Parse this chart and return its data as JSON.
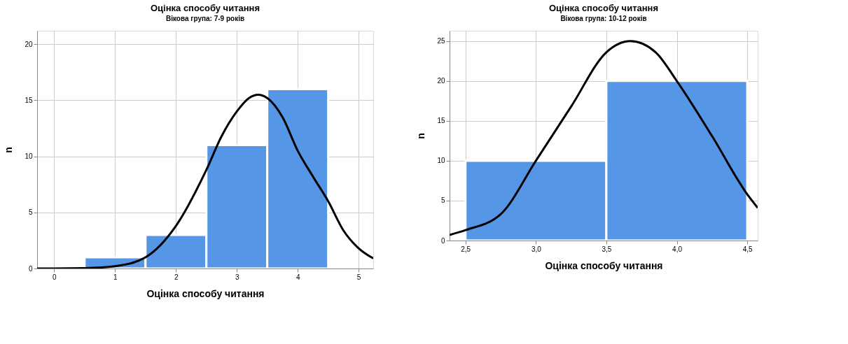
{
  "chart_data": [
    {
      "type": "histogram",
      "title": "Оцінка способу читання",
      "subtitle": "Вікова група: 7-9 років",
      "xlabel": "Оцінка способу читання",
      "ylabel": "n",
      "bins": [
        0.5,
        1.5,
        2.5,
        3.5,
        4.5
      ],
      "values": [
        1,
        3,
        11,
        16
      ],
      "color": "#5596e6",
      "series": [
        {
          "type": "line",
          "color": "#000000",
          "x": [
            -0.28,
            0,
            0.5,
            1,
            1.5,
            2,
            2.5,
            2.75,
            3,
            3.2,
            3.35,
            3.5,
            3.75,
            4,
            4.25,
            4.5,
            4.75,
            5,
            5.24
          ],
          "values": [
            0,
            0,
            0.03,
            0.2,
            1.0,
            3.8,
            8.8,
            11.8,
            14.0,
            15.2,
            15.5,
            15.2,
            13.5,
            10.5,
            8.2,
            6.0,
            3.4,
            1.8,
            0.9
          ]
        }
      ],
      "xlim": [
        -0.28,
        5.24
      ],
      "xticks": [
        0,
        1,
        2,
        3,
        4,
        5
      ],
      "ylim": [
        0,
        21.2
      ],
      "yticks": [
        0,
        5,
        10,
        15,
        20
      ],
      "grid": true
    },
    {
      "type": "histogram",
      "title": "Оцінка способу читання",
      "subtitle": "Вікова група: 10-12 років",
      "xlabel": "Оцінка способу читання",
      "ylabel": "n",
      "bins": [
        2.5,
        3.5,
        4.5
      ],
      "values": [
        10,
        20
      ],
      "color": "#5596e6",
      "series": [
        {
          "type": "line",
          "color": "#000000",
          "x": [
            2.387,
            2.5,
            2.75,
            3.0,
            3.25,
            3.5,
            3.67,
            3.85,
            4.0,
            4.25,
            4.5,
            4.574
          ],
          "values": [
            0.7,
            1.3,
            3.3,
            10.0,
            16.8,
            23.6,
            25.0,
            23.6,
            20.0,
            13.1,
            5.8,
            4.1
          ]
        }
      ],
      "xlim": [
        2.387,
        4.574
      ],
      "xticks": [
        {
          "value": 2.5,
          "label": "2,5"
        },
        {
          "value": 3.0,
          "label": "3,0"
        },
        {
          "value": 3.5,
          "label": "3,5"
        },
        {
          "value": 4.0,
          "label": "4,0"
        },
        {
          "value": 4.5,
          "label": "4,5"
        }
      ],
      "ylim": [
        0,
        26.3
      ],
      "yticks": [
        0,
        5,
        10,
        15,
        20,
        25
      ],
      "grid": true
    }
  ]
}
